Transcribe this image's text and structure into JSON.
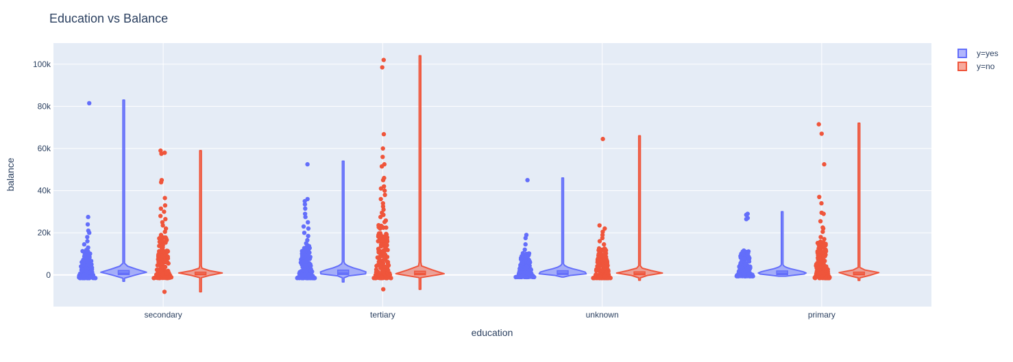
{
  "chart_data": {
    "type": "violin",
    "title": "Education vs Balance",
    "xlabel": "education",
    "ylabel": "balance",
    "categories": [
      "secondary",
      "tertiary",
      "unknown",
      "primary"
    ],
    "ylim": [
      -15000,
      110000
    ],
    "yticks": [
      0,
      20000,
      40000,
      60000,
      80000,
      100000
    ],
    "ytick_labels": [
      "0",
      "20k",
      "40k",
      "60k",
      "80k",
      "100k"
    ],
    "grid": true,
    "legend_position": "top-right",
    "series": [
      {
        "name": "y=yes",
        "color": "#636efa",
        "stats": [
          {
            "min": -3000,
            "q1": 150,
            "median": 700,
            "q3": 2100,
            "max": 83000,
            "upper_fence": 12000,
            "outliers": [
              81500,
              27500,
              24000,
              21000,
              20000,
              18000,
              16000,
              14500,
              13000
            ]
          },
          {
            "min": -3300,
            "q1": 200,
            "median": 800,
            "q3": 2300,
            "max": 54000,
            "upper_fence": 14000,
            "outliers": [
              52500,
              36000,
              35000,
              33500,
              31500,
              29000,
              27500,
              25000,
              23000,
              22000,
              20000,
              18500,
              16500,
              15000
            ]
          },
          {
            "min": -1000,
            "q1": 200,
            "median": 700,
            "q3": 2000,
            "max": 46000,
            "upper_fence": 11000,
            "outliers": [
              45000,
              19000,
              17500,
              14500,
              12000
            ]
          },
          {
            "min": -600,
            "q1": 150,
            "median": 700,
            "q3": 1900,
            "max": 30000,
            "upper_fence": 12000,
            "outliers": [
              29000,
              28500,
              27000,
              26500
            ]
          }
        ]
      },
      {
        "name": "y=no",
        "color": "#ef553b",
        "stats": [
          {
            "min": -8000,
            "q1": 50,
            "median": 400,
            "q3": 1300,
            "max": 59000,
            "upper_fence": 18000,
            "outliers": [
              59000,
              58000,
              57500,
              45000,
              44000,
              36500,
              33000,
              31500,
              30000,
              28000,
              26500,
              25000,
              23500,
              22000,
              20500,
              19000,
              -8000
            ]
          },
          {
            "min": -6800,
            "q1": 100,
            "median": 600,
            "q3": 1800,
            "max": 104000,
            "upper_fence": 26000,
            "outliers": [
              102000,
              98500,
              66800,
              60000,
              56000,
              52500,
              51500,
              46000,
              45000,
              42000,
              41000,
              40000,
              38000,
              36000,
              34000,
              32500,
              31000,
              29500,
              28500,
              27500,
              -6800
            ]
          },
          {
            "min": -2500,
            "q1": 100,
            "median": 500,
            "q3": 1500,
            "max": 66000,
            "upper_fence": 13000,
            "outliers": [
              64500,
              23500,
              22000,
              20500,
              19000,
              17500,
              16000,
              14500
            ]
          },
          {
            "min": -2600,
            "q1": 50,
            "median": 400,
            "q3": 1300,
            "max": 72000,
            "upper_fence": 16000,
            "outliers": [
              71500,
              67000,
              52500,
              37000,
              34000,
              29500,
              29000,
              25500,
              22500,
              22000,
              20500,
              18000,
              17000
            ]
          }
        ]
      }
    ]
  }
}
